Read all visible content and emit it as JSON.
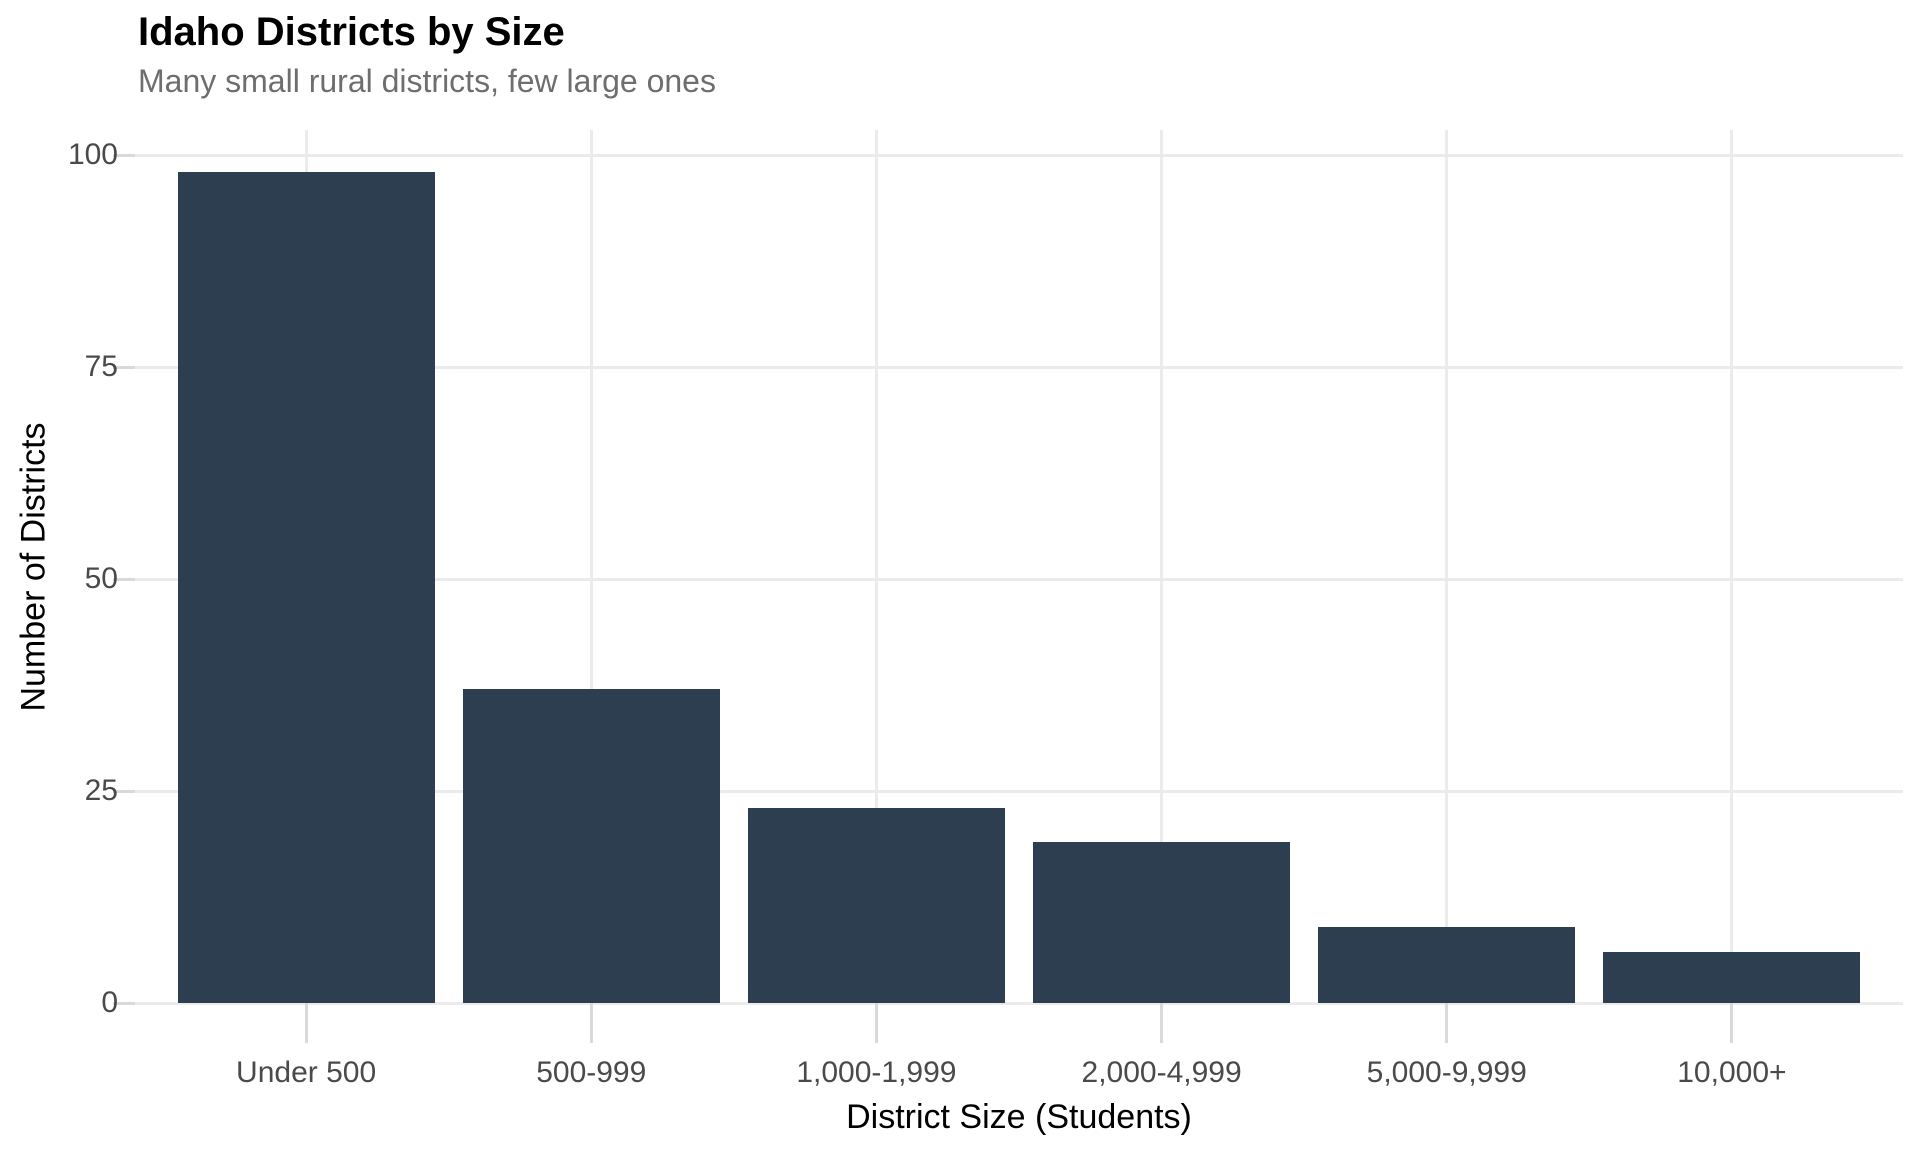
{
  "chart_data": {
    "type": "bar",
    "title": "Idaho Districts by Size",
    "subtitle": "Many small rural districts, few large ones",
    "xlabel": "District Size (Students)",
    "ylabel": "Number of Districts",
    "categories": [
      "Under 500",
      "500-999",
      "1,000-1,999",
      "2,000-4,999",
      "5,000-9,999",
      "10,000+"
    ],
    "values": [
      98,
      37,
      23,
      19,
      9,
      6
    ],
    "yticks": [
      0,
      25,
      50,
      75,
      100
    ],
    "ylim": [
      0,
      103
    ],
    "grid": "major horizontal and vertical, light gray on white",
    "legend": false,
    "bar_color": "#2d3e50",
    "grid_color": "#ebebeb",
    "tick_color": "#d9d9d9",
    "tick_label_color": "#4a4a4a",
    "subtitle_color": "#6e6e6e",
    "title_color": "#000000",
    "background": "#ffffff"
  }
}
